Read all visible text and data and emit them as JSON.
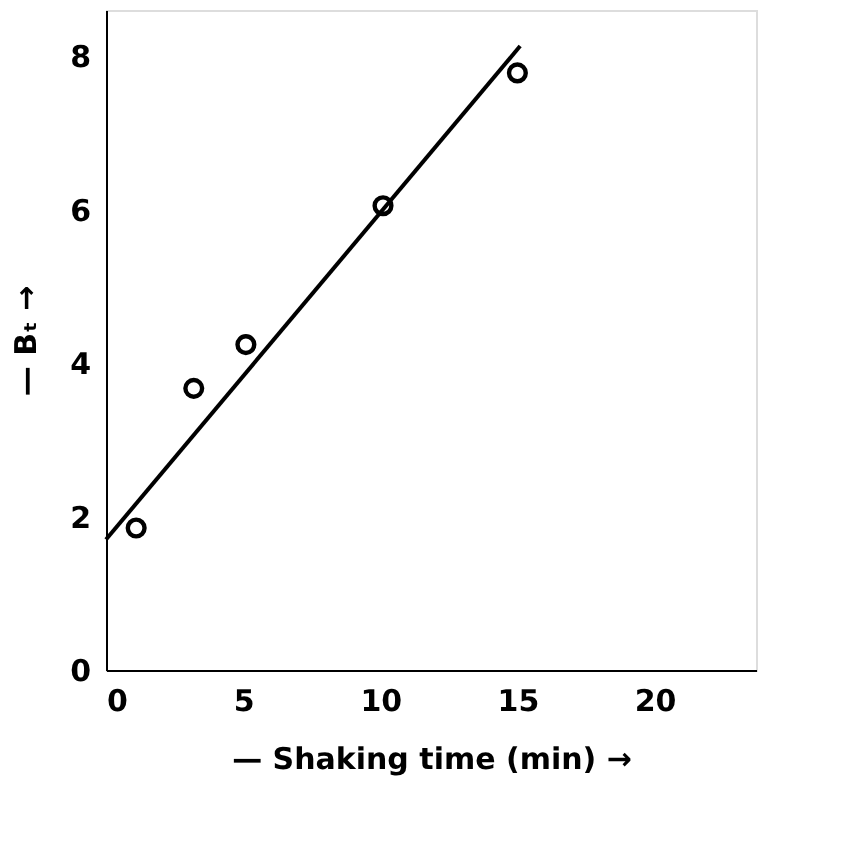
{
  "chart_data": {
    "type": "scatter",
    "xlabel": "— Shaking time (min) →",
    "ylabel": "— Bₜ →",
    "xlim": [
      0,
      23.7
    ],
    "ylim": [
      0,
      8.6
    ],
    "xticks": [
      0,
      5,
      10,
      15,
      20
    ],
    "yticks": [
      0,
      2,
      4,
      6,
      8
    ],
    "grid": false,
    "series": [
      {
        "color": "#000000",
        "marker": "circle",
        "x": [
          1.1,
          3.2,
          5.1,
          10.1,
          15.0
        ],
        "values": [
          1.85,
          3.67,
          4.24,
          6.05,
          7.78
        ]
      },
      {
        "type": "line",
        "color": "#000000",
        "line_style": "solid",
        "marker": "none",
        "x": [
          0,
          15.1
        ],
        "values": [
          1.7,
          8.13
        ]
      }
    ]
  }
}
